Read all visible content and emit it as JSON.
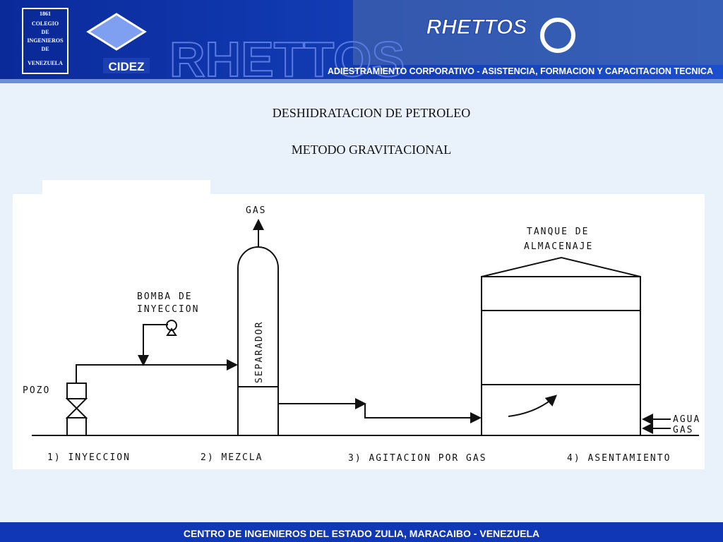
{
  "header": {
    "logo_left": [
      "1861",
      "COLEGIO",
      "DE",
      "INGENIEROS",
      "DE",
      "VENEZUELA"
    ],
    "logo_mid": "CIDEZ",
    "brand": "RHETTOS",
    "tagline": "ADIESTRAMIENTO CORPORATIVO - ASISTENCIA, FORMACION  Y CAPACITACION TECNICA"
  },
  "title": "DESHIDRATACION DE PETROLEO",
  "subtitle": "METODO GRAVITACIONAL",
  "diagram": {
    "labels": {
      "gas_top": "GAS",
      "tank_1": "TANQUE DE",
      "tank_2": "ALMACENAJE",
      "pump_1": "BOMBA DE",
      "pump_2": "INYECCION",
      "separator": "SEPARADOR",
      "well": "POZO",
      "water": "AGUA",
      "gas_out": "GAS"
    },
    "steps": [
      "1) INYECCION",
      "2) MEZCLA",
      "3) AGITACION POR GAS",
      "4) ASENTAMIENTO"
    ]
  },
  "footer": "CENTRO DE INGENIEROS DEL ESTADO ZULIA, MARACAIBO - VENEZUELA"
}
